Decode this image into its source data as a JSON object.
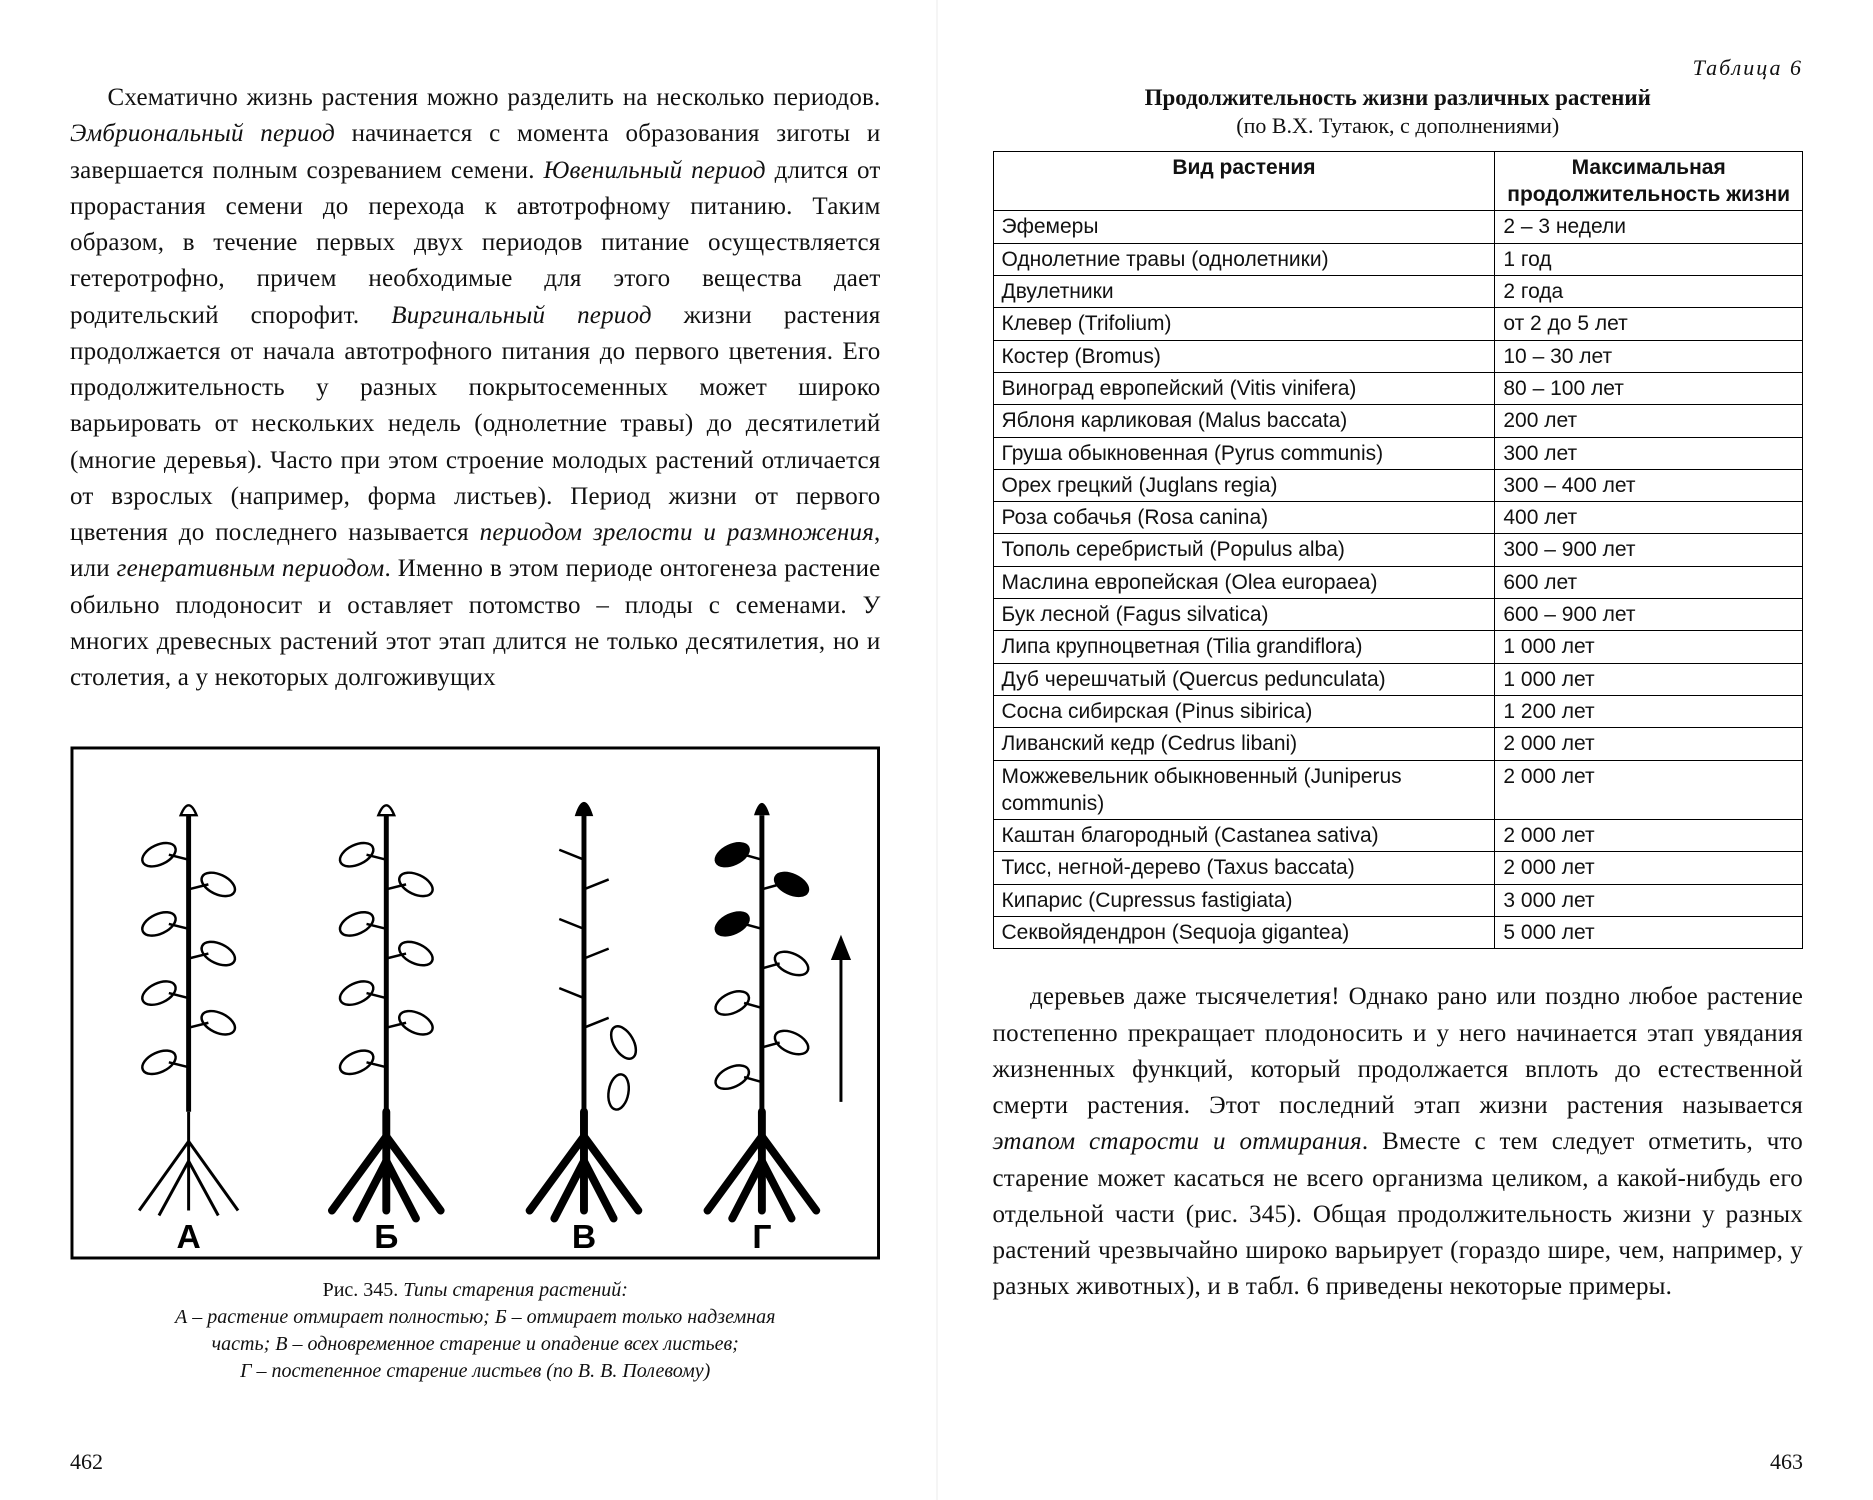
{
  "left": {
    "paragraph_html": "Схематично жизнь растения можно разделить на несколько периодов. <span class=\"em\">Эмбриональный период</span> начинается с момента образования зиготы и завершается полным созреванием семени. <span class=\"em\">Ювенильный период</span> длится от прорастания семени до перехода к автотрофному питанию. Таким образом, в течение первых двух периодов питание осуществляется гетеротрофно, причем необходимые для этого вещества дает родительский спорофит. <span class=\"em\">Виргинальный период</span> жизни растения продолжается от начала автотрофного питания до первого цветения. Его продолжительность у разных покрытосеменных может широко варьировать от нескольких недель (однолетние травы) до десятилетий (многие деревья). Часто при этом строение молодых растений отличается от взрослых (например, форма листьев). Период жизни от первого цветения до последнего называется <span class=\"em\">периодом зрелости и размножения</span>, или <span class=\"em\">генеративным периодом</span>. Именно в этом периоде онтогенеза растение обильно плодоносит и оставляет потомство – плоды с семенами. У многих древесных растений этот этап длится не только десятилетия, но и столетия, а у некоторых долгоживущих",
    "figure": {
      "caption_prefix": "Рис. 345.",
      "caption_title": "Типы старения растений:",
      "caption_lines": [
        "А – растение отмирает полностью; Б – отмирает только надземная",
        "часть; В – одновременное старение и опадение всех листьев;",
        "Г – постепенное старение листьев (по В. В. Полевому)"
      ],
      "labels": [
        "А",
        "Б",
        "В",
        "Г"
      ]
    },
    "page_number": "462"
  },
  "right": {
    "table_label": "Таблица 6",
    "table_title": "Продолжительность жизни различных растений",
    "table_sub": "(по В.Х. Тутаюк, с дополнениями)",
    "table": {
      "header": [
        "Вид растения",
        "Максимальная продолжительность жизни"
      ],
      "rows": [
        [
          "Эфемеры",
          "2 – 3 недели"
        ],
        [
          "Однолетние травы (однолетники)",
          "1 год"
        ],
        [
          "Двулетники",
          "2 года"
        ],
        [
          "Клевер (Trifolium)",
          "от 2 до 5 лет"
        ],
        [
          "Костер (Bromus)",
          "10 – 30 лет"
        ],
        [
          "Виноград европейский (Vitis vinifera)",
          "80 – 100 лет"
        ],
        [
          "Яблоня карликовая (Malus baccata)",
          "200 лет"
        ],
        [
          "Груша обыкновенная (Pyrus communis)",
          "300 лет"
        ],
        [
          "Орех грецкий (Juglans regia)",
          "300 – 400 лет"
        ],
        [
          "Роза собачья (Rosa canina)",
          "400 лет"
        ],
        [
          "Тополь серебристый (Populus alba)",
          "300 – 900 лет"
        ],
        [
          "Маслина европейская (Olea europaea)",
          "600 лет"
        ],
        [
          "Бук лесной (Fagus silvatica)",
          "600 – 900 лет"
        ],
        [
          "Липа крупноцветная (Tilia grandiflora)",
          "1 000 лет"
        ],
        [
          "Дуб черешчатый (Quercus pedunculata)",
          "1 000 лет"
        ],
        [
          "Сосна сибирская (Pinus sibirica)",
          "1 200 лет"
        ],
        [
          "Ливанский кедр (Cedrus libani)",
          "2 000 лет"
        ],
        [
          "Можжевельник обыкновенный (Juniperus communis)",
          "2 000 лет"
        ],
        [
          "Каштан благородный (Castanea sativa)",
          "2 000 лет"
        ],
        [
          "Тисс, негной-дерево (Taxus baccata)",
          "2 000 лет"
        ],
        [
          "Кипарис (Cupressus fastigiata)",
          "3 000 лет"
        ],
        [
          "Секвойядендрон (Sequoja gigantea)",
          "5 000 лет"
        ]
      ]
    },
    "paragraph_html": "деревьев даже тысячелетия! Однако рано или поздно любое растение постепенно прекращает плодоносить и у него начинается этап увядания жизненных функций, который продолжается вплоть до естественной смерти растения. Этот последний этап жизни растения называется <span class=\"em\">этапом старости и отмирания</span>. Вместе с тем следует отметить, что старение может касаться не всего организма целиком, а какой-нибудь его отдельной части (рис. 345). Общая продолжительность жизни у разных растений чрезвычайно широко варьирует (гораздо шире, чем, например, у разных животных), и в табл. 6 приведены некоторые примеры.",
    "page_number": "463"
  },
  "figure_style": {
    "stroke": "#000000",
    "fill_leaf": "#000000",
    "fill_outline": "#ffffff",
    "font_family": "Arial, Helvetica, sans-serif"
  }
}
